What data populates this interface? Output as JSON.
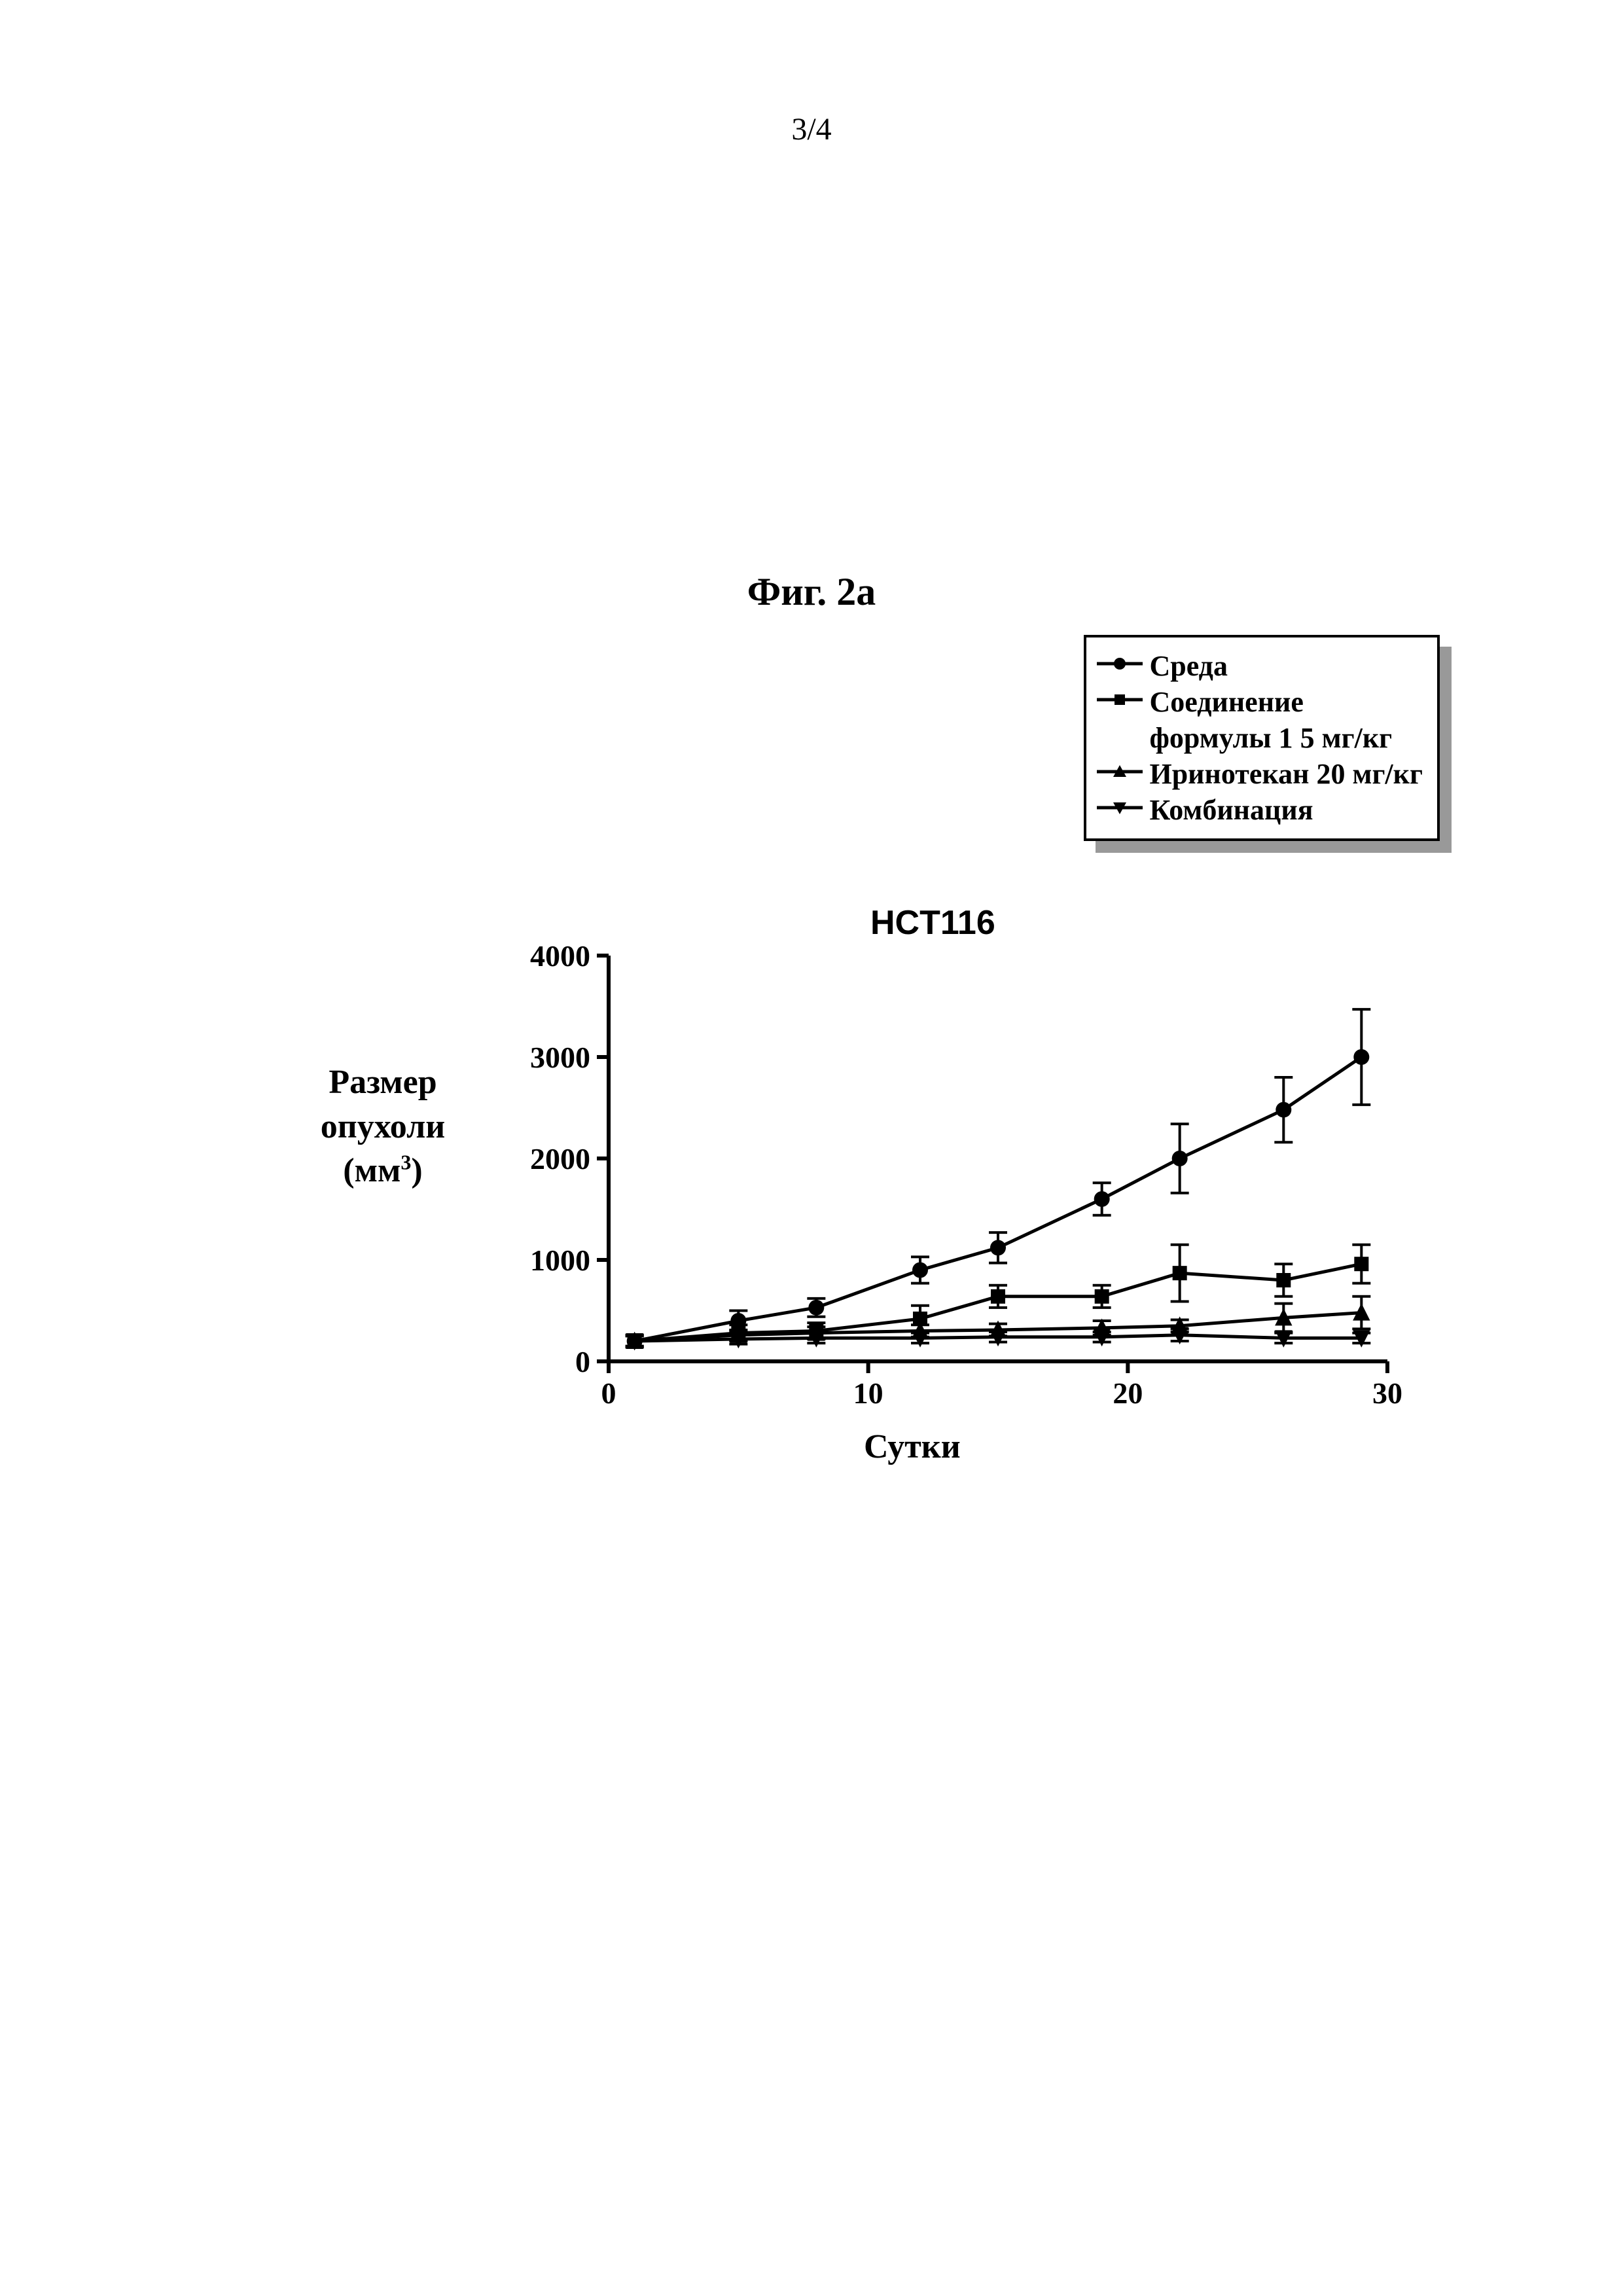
{
  "page_number": "3/4",
  "figure_title": "Фиг. 2a",
  "chart": {
    "type": "line-scatter-with-errorbars",
    "subtitle": "HCT116",
    "xlabel": "Сутки",
    "ylabel_line1": "Размер",
    "ylabel_line2": "опухоли",
    "ylabel_line3_prefix": "(мм",
    "ylabel_line3_sup": "3",
    "ylabel_line3_suffix": ")",
    "xlim": [
      0,
      30
    ],
    "ylim": [
      0,
      4000
    ],
    "xticks": [
      0,
      10,
      20,
      30
    ],
    "yticks": [
      0,
      1000,
      2000,
      3000,
      4000
    ],
    "tick_fontsize": 46,
    "axis_stroke_width": 6,
    "colors": {
      "background": "#ffffff",
      "axis": "#000000",
      "series": "#000000",
      "errorbar": "#000000"
    },
    "series": [
      {
        "key": "vehicle",
        "label": "Среда",
        "marker": "circle",
        "marker_size": 12,
        "x": [
          1,
          5,
          8,
          12,
          15,
          19,
          22,
          26,
          29
        ],
        "y": [
          200,
          400,
          530,
          900,
          1120,
          1600,
          2000,
          2480,
          3000
        ],
        "err": [
          60,
          100,
          90,
          130,
          150,
          160,
          340,
          320,
          470
        ]
      },
      {
        "key": "compound",
        "label_line1": "Соединение",
        "label_line2": "формулы 1 5 мг/кг",
        "marker": "square",
        "marker_size": 11,
        "x": [
          1,
          5,
          8,
          12,
          15,
          19,
          22,
          26,
          29
        ],
        "y": [
          200,
          280,
          300,
          420,
          640,
          640,
          870,
          800,
          960
        ],
        "err": [
          60,
          80,
          80,
          130,
          110,
          110,
          280,
          160,
          190
        ]
      },
      {
        "key": "irinotecan",
        "label": "Иринотекан 20 мг/кг",
        "marker": "triangle-up",
        "marker_size": 12,
        "x": [
          1,
          5,
          8,
          12,
          15,
          19,
          22,
          26,
          29
        ],
        "y": [
          200,
          260,
          280,
          300,
          310,
          330,
          350,
          430,
          480
        ],
        "err": [
          50,
          50,
          60,
          60,
          60,
          70,
          60,
          140,
          160
        ]
      },
      {
        "key": "combo",
        "label": "Комбинация",
        "marker": "triangle-down",
        "marker_size": 12,
        "x": [
          1,
          5,
          8,
          12,
          15,
          19,
          22,
          26,
          29
        ],
        "y": [
          200,
          220,
          230,
          230,
          240,
          240,
          260,
          230,
          230
        ],
        "err": [
          50,
          50,
          50,
          50,
          50,
          50,
          60,
          50,
          50
        ]
      }
    ],
    "legend": [
      {
        "series": "vehicle",
        "marker": "circle",
        "text": "Среда"
      },
      {
        "series": "compound",
        "marker": "square",
        "text1": "Соединение",
        "text2": "формулы 1 5 мг/кг"
      },
      {
        "series": "irinotecan",
        "marker": "triangle-up",
        "text": "Иринотекан 20 мг/кг"
      },
      {
        "series": "combo",
        "marker": "triangle-down",
        "text": "Комбинация"
      }
    ]
  }
}
